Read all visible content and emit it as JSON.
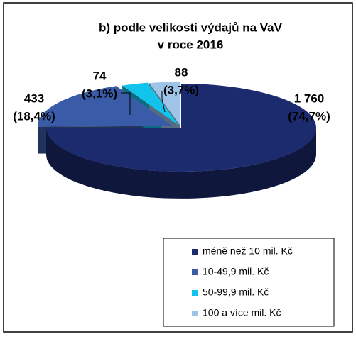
{
  "chart_data": {
    "type": "pie3d",
    "title": [
      "b) podle velikosti výdajů na VaV",
      "v roce 2016"
    ],
    "categories": [
      "méně než 10 mil. Kč",
      "10-49,9 mil. Kč",
      "50-99,9 mil. Kč",
      "100 a více mil. Kč"
    ],
    "values": [
      1760,
      433,
      74,
      88
    ],
    "value_labels": [
      "1 760",
      "433",
      "74",
      "88"
    ],
    "percentages": [
      74.7,
      18.4,
      3.1,
      3.7
    ],
    "percent_labels": [
      "(74,7%)",
      "(18,4%)",
      "(3,1%)",
      "(3,7%)"
    ],
    "colors": [
      "#1c2a6e",
      "#3a5ca8",
      "#12c3ec",
      "#9ec4e8"
    ],
    "legend": "bottom-right"
  }
}
